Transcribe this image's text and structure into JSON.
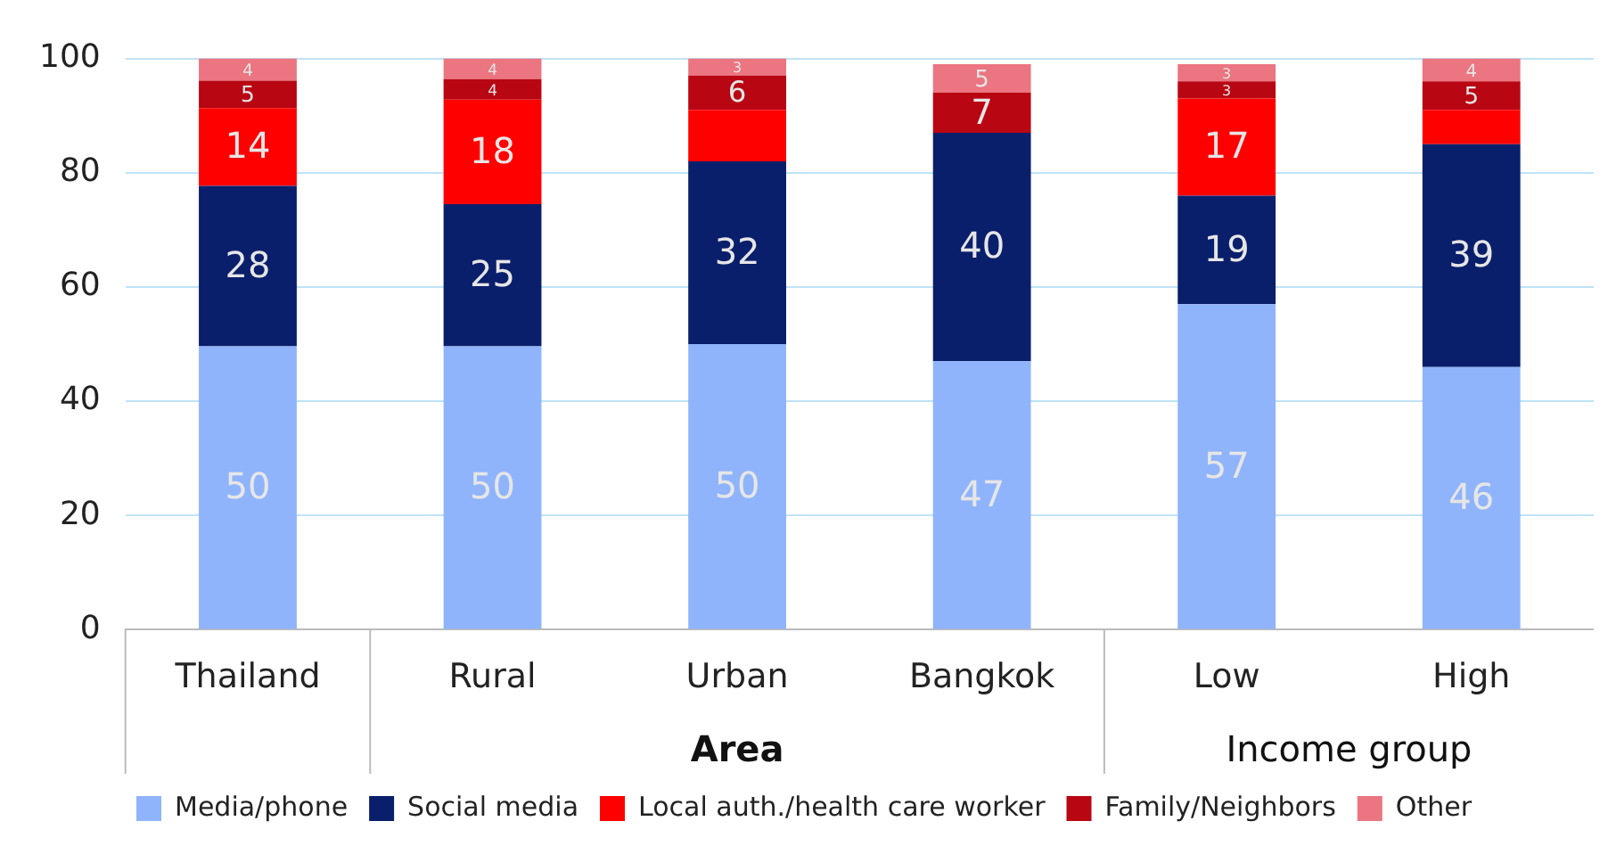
{
  "chart_data": {
    "type": "bar",
    "stacked": true,
    "categories": [
      "Thailand",
      "Rural",
      "Urban",
      "Bangkok",
      "Low",
      "High"
    ],
    "ylim": [
      0,
      100
    ],
    "yticks": [
      0,
      20,
      40,
      60,
      80,
      100
    ],
    "grid": "y",
    "legend": "bottom",
    "annotations": [
      "Area",
      "Income group"
    ],
    "series": [
      {
        "name": "Media/phone",
        "color": "#8fb4fb",
        "values": [
          49.6,
          49.6,
          50,
          47,
          57,
          46
        ],
        "value_labels": [
          "50",
          "50",
          "50",
          "47",
          "57",
          "46"
        ]
      },
      {
        "name": "Social media",
        "color": "#0a1f6b",
        "values": [
          28.1,
          24.9,
          32,
          40,
          19,
          39
        ],
        "value_labels": [
          "28",
          "25",
          "32",
          "40",
          "19",
          "39"
        ]
      },
      {
        "name": "Local auth./health care worker",
        "color": "#ff0000",
        "values": [
          13.6,
          18.3,
          9,
          0,
          17,
          6
        ],
        "value_labels": [
          "14",
          "18",
          null,
          null,
          "17",
          null
        ]
      },
      {
        "name": "Family/Neighbors",
        "color": "#b90613",
        "values": [
          4.8,
          3.6,
          6,
          7,
          3,
          5
        ],
        "value_labels": [
          "5",
          "4",
          "6",
          "7",
          "3",
          "5"
        ]
      },
      {
        "name": "Other",
        "color": "#eb7580",
        "values": [
          3.9,
          3.6,
          3,
          5,
          3,
          4
        ],
        "value_labels": [
          "4",
          "4",
          "3",
          "5",
          "3",
          "4"
        ]
      }
    ]
  }
}
